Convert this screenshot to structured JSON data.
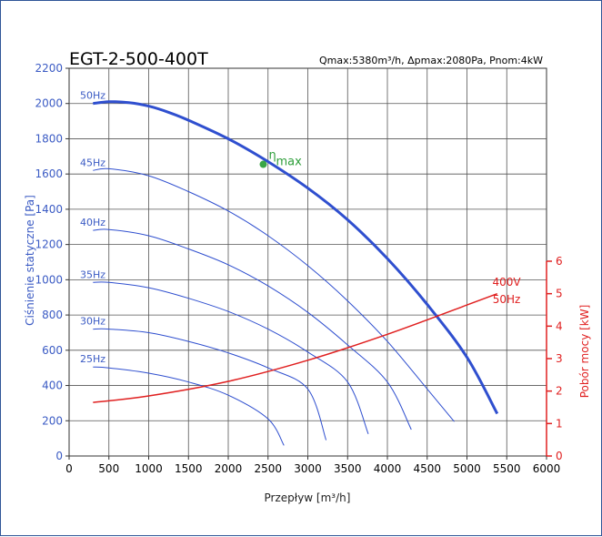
{
  "chart_data": {
    "type": "line",
    "title": "EGT-2-500-400T",
    "subtitle": "Qmax:5380m³/h, Δpmax:2080Pa, Pnom:4kW",
    "xlabel": "Przepływ [m³/h]",
    "ylabel": "Ciśnienie statyczne [Pa]",
    "y2label": "Pobór mocy [kW]",
    "xlim": [
      0,
      6000
    ],
    "ylim": [
      0,
      2200
    ],
    "y2lim": [
      0,
      6
    ],
    "xticks": [
      "0",
      "500",
      "1000",
      "1500",
      "2000",
      "2500",
      "3000",
      "3500",
      "4000",
      "4500",
      "5000",
      "5500",
      "6000"
    ],
    "yticks": [
      "0",
      "200",
      "400",
      "600",
      "800",
      "1000",
      "1200",
      "1400",
      "1600",
      "1800",
      "2000",
      "2200"
    ],
    "y2ticks": [
      "0",
      "1",
      "2",
      "3",
      "4",
      "5",
      "6"
    ],
    "grid": true,
    "series": [
      {
        "name": "50Hz",
        "axis": "pressure",
        "color": "#2f4fcf",
        "width": 3,
        "x": [
          300,
          500,
          750,
          1000,
          1250,
          1500,
          2000,
          2500,
          3000,
          3500,
          4000,
          4500,
          5000,
          5380
        ],
        "y": [
          2000,
          2010,
          2005,
          1985,
          1950,
          1905,
          1800,
          1670,
          1520,
          1340,
          1120,
          860,
          560,
          240
        ]
      },
      {
        "name": "45Hz",
        "axis": "pressure",
        "color": "#2f4fcf",
        "width": 1,
        "x": [
          300,
          500,
          1000,
          1500,
          2000,
          2500,
          3000,
          3500,
          4000,
          4500,
          4840
        ],
        "y": [
          1620,
          1630,
          1590,
          1500,
          1390,
          1250,
          1080,
          880,
          650,
          380,
          195
        ]
      },
      {
        "name": "40Hz",
        "axis": "pressure",
        "color": "#2f4fcf",
        "width": 1,
        "x": [
          300,
          500,
          1000,
          1500,
          2000,
          2500,
          3000,
          3500,
          4000,
          4300
        ],
        "y": [
          1280,
          1285,
          1250,
          1175,
          1085,
          965,
          815,
          630,
          420,
          150
        ]
      },
      {
        "name": "35Hz",
        "axis": "pressure",
        "color": "#2f4fcf",
        "width": 1,
        "x": [
          300,
          500,
          1000,
          1500,
          2000,
          2500,
          3000,
          3500,
          3760
        ],
        "y": [
          985,
          985,
          955,
          895,
          820,
          720,
          590,
          420,
          125
        ]
      },
      {
        "name": "30Hz",
        "axis": "pressure",
        "color": "#2f4fcf",
        "width": 1,
        "x": [
          300,
          500,
          1000,
          1500,
          2000,
          2500,
          3000,
          3230
        ],
        "y": [
          720,
          720,
          700,
          650,
          585,
          500,
          380,
          90
        ]
      },
      {
        "name": "25Hz",
        "axis": "pressure",
        "color": "#2f4fcf",
        "width": 1,
        "x": [
          300,
          500,
          1000,
          1500,
          2000,
          2500,
          2700
        ],
        "y": [
          505,
          500,
          470,
          420,
          345,
          210,
          60
        ]
      },
      {
        "name": "400V 50Hz",
        "axis": "power",
        "color": "#e02020",
        "width": 1.5,
        "x": [
          300,
          1000,
          2000,
          3000,
          4000,
          5000,
          5380
        ],
        "y": [
          1.65,
          1.85,
          2.3,
          2.95,
          3.75,
          4.65,
          5.0
        ]
      }
    ],
    "hz_labels": [
      "50Hz",
      "45Hz",
      "40Hz",
      "35Hz",
      "30Hz",
      "25Hz"
    ],
    "power_label": [
      "400V",
      "50Hz"
    ],
    "eta_label": {
      "main": "η",
      "sub": "max",
      "x": 2440,
      "y": 1655
    }
  }
}
